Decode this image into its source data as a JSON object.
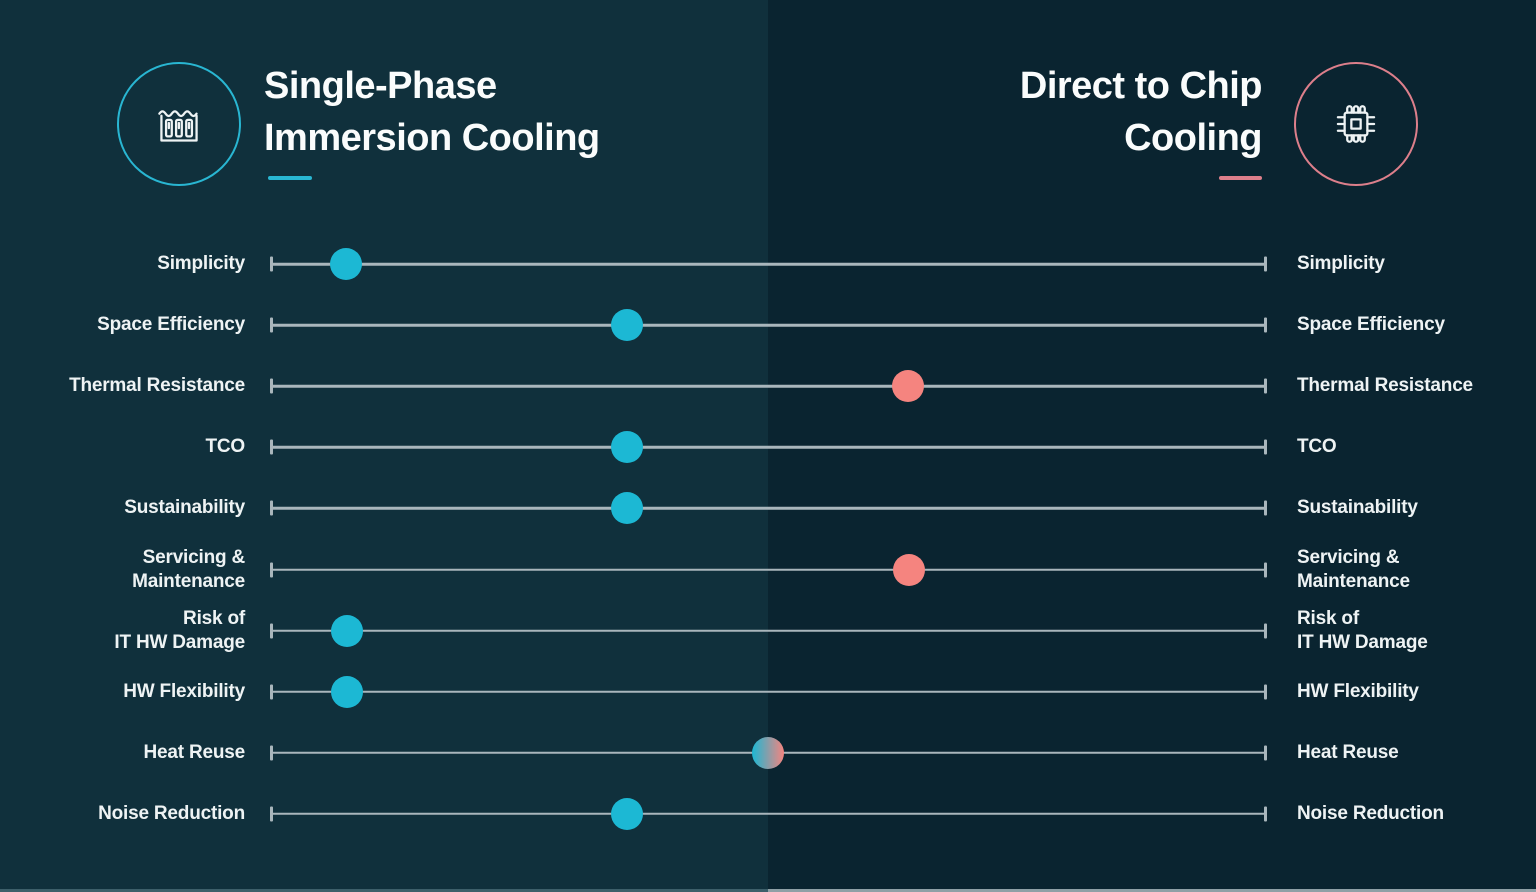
{
  "left_header": {
    "title_line1": "Single-Phase",
    "title_line2": "Immersion Cooling",
    "icon": "immersion-tank-icon"
  },
  "right_header": {
    "title_line1": "Direct to Chip",
    "title_line2": "Cooling",
    "icon": "chip-icon"
  },
  "rows": [
    {
      "left": "Simplicity",
      "right": "Simplicity",
      "dot": "teal",
      "pos_pct": 7.6
    },
    {
      "left": "Space Efficiency",
      "right": "Space Efficiency",
      "dot": "teal",
      "pos_pct": 35.8
    },
    {
      "left": "Thermal Resistance",
      "right": "Thermal Resistance",
      "dot": "pink",
      "pos_pct": 64.0
    },
    {
      "left": "TCO",
      "right": "TCO",
      "dot": "teal",
      "pos_pct": 35.8
    },
    {
      "left": "Sustainability",
      "right": "Sustainability",
      "dot": "teal",
      "pos_pct": 35.8
    },
    {
      "left": "Servicing &\nMaintenance",
      "right": "Servicing &\nMaintenance",
      "dot": "pink",
      "pos_pct": 64.1
    },
    {
      "left": "Risk of\nIT HW Damage",
      "right": "Risk of\nIT HW Damage",
      "dot": "teal",
      "pos_pct": 7.7
    },
    {
      "left": "HW Flexibility",
      "right": "HW Flexibility",
      "dot": "teal",
      "pos_pct": 7.7
    },
    {
      "left": "Heat Reuse",
      "right": "Heat Reuse",
      "dot": "split",
      "pos_pct": 49.9
    },
    {
      "left": "Noise Reduction",
      "right": "Noise Reduction",
      "dot": "teal",
      "pos_pct": 35.8
    }
  ],
  "colors": {
    "bg_left": "#10303c",
    "bg_right": "#0a2430",
    "teal": "#1cb8d4",
    "pink": "#f5847f",
    "teal_line": "#29b6d2",
    "pink_line": "#dd7f8b",
    "track": "#a9b6bc",
    "label_text": "#eef3f4",
    "title_text": "#fafcfc",
    "strip_left": "#3d5f6a",
    "strip_right": "#8fa0a6"
  },
  "chart_data": {
    "type": "dot-slider-comparison",
    "title": "Single-Phase Immersion Cooling vs Direct to Chip Cooling",
    "scale": {
      "left_end": "Single-Phase Immersion Cooling",
      "right_end": "Direct to Chip Cooling",
      "range": [
        0,
        1
      ]
    },
    "attributes": [
      {
        "name": "Simplicity",
        "position": 0.08,
        "favors": "immersion"
      },
      {
        "name": "Space Efficiency",
        "position": 0.36,
        "favors": "immersion"
      },
      {
        "name": "Thermal Resistance",
        "position": 0.64,
        "favors": "direct-to-chip"
      },
      {
        "name": "TCO",
        "position": 0.36,
        "favors": "immersion"
      },
      {
        "name": "Sustainability",
        "position": 0.36,
        "favors": "immersion"
      },
      {
        "name": "Servicing & Maintenance",
        "position": 0.64,
        "favors": "direct-to-chip"
      },
      {
        "name": "Risk of IT HW Damage",
        "position": 0.08,
        "favors": "immersion"
      },
      {
        "name": "HW Flexibility",
        "position": 0.08,
        "favors": "immersion"
      },
      {
        "name": "Heat Reuse",
        "position": 0.5,
        "favors": "both"
      },
      {
        "name": "Noise Reduction",
        "position": 0.36,
        "favors": "immersion"
      }
    ],
    "legend_position": "none",
    "grid": false
  }
}
